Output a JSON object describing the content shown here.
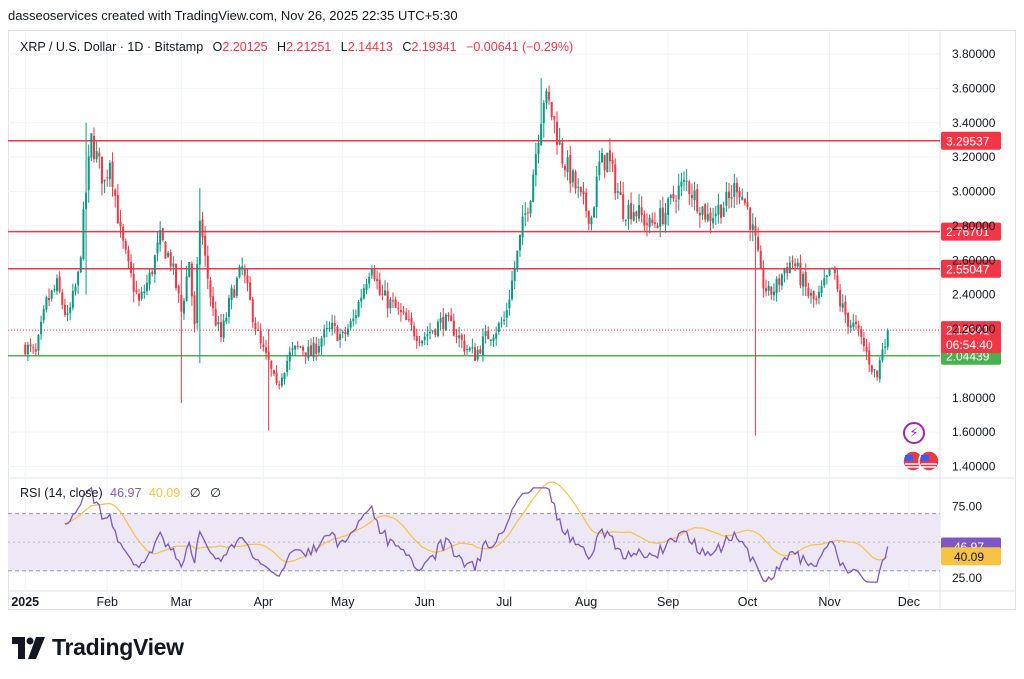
{
  "attribution": "dasseoservices created with TradingView.com, Nov 26, 2025 22:35 UTC+5:30",
  "legend": {
    "symbol": "XRP / U.S. Dollar · 1D · Bitstamp",
    "o_label": "O",
    "o_value": "2.20125",
    "h_label": "H",
    "h_value": "2.21251",
    "l_label": "L",
    "l_value": "2.14413",
    "c_label": "C",
    "c_value": "2.19341",
    "change": "−0.00641 (−0.29%)"
  },
  "rsi_legend": {
    "label": "RSI (14, close)",
    "rsi_value": "46.97",
    "ma_value": "40.09",
    "na1": "∅",
    "na2": "∅"
  },
  "logo_text": "TradingView",
  "icons": {
    "lightning": "lightning-icon",
    "flag": "us-flag-icon"
  },
  "colors": {
    "up": "#089981",
    "down": "#f23645",
    "resistance": "#f23645",
    "support": "#4caf50",
    "rsi": "#7e57c2",
    "rsi_ma": "#f6c343",
    "rsi_band": "#ede7f6"
  },
  "chart_data": {
    "type": "candlestick",
    "symbol": "XRP / U.S. Dollar",
    "interval": "1D",
    "exchange": "Bitstamp",
    "y_ticks": [
      "3.80000",
      "3.60000",
      "3.40000",
      "3.20000",
      "3.00000",
      "2.80000",
      "2.60000",
      "2.40000",
      "2.20000",
      "1.80000",
      "1.60000",
      "1.40000"
    ],
    "y_tick_values": [
      3.8,
      3.6,
      3.4,
      3.2,
      3.0,
      2.8,
      2.6,
      2.4,
      2.2,
      1.8,
      1.6,
      1.4
    ],
    "ylim": [
      1.38,
      3.87
    ],
    "x_ticks": [
      {
        "label": "2025",
        "day": 0
      },
      {
        "label": "Feb",
        "day": 31
      },
      {
        "label": "Mar",
        "day": 59
      },
      {
        "label": "Apr",
        "day": 90
      },
      {
        "label": "May",
        "day": 120
      },
      {
        "label": "Jun",
        "day": 151
      },
      {
        "label": "Jul",
        "day": 181
      },
      {
        "label": "Aug",
        "day": 212
      },
      {
        "label": "Sep",
        "day": 243
      },
      {
        "label": "Oct",
        "day": 273
      },
      {
        "label": "Nov",
        "day": 304
      },
      {
        "label": "Dec",
        "day": 334
      }
    ],
    "xlim": [
      -5,
      345
    ],
    "horizontal_levels": [
      {
        "value": 3.29537,
        "label": "3.29537",
        "color": "#f23645"
      },
      {
        "value": 2.76701,
        "label": "2.76701",
        "color": "#f23645"
      },
      {
        "value": 2.55047,
        "label": "2.55047",
        "color": "#f23645"
      },
      {
        "value": 2.04439,
        "label": "2.04439",
        "color": "#4caf50"
      }
    ],
    "last_price": {
      "value": 2.19341,
      "label": "2.19341",
      "countdown": "06:54:40"
    },
    "price_path": [
      [
        0,
        2.1
      ],
      [
        4,
        2.05
      ],
      [
        8,
        2.35
      ],
      [
        12,
        2.45
      ],
      [
        16,
        2.25
      ],
      [
        20,
        2.5
      ],
      [
        23,
        3.0
      ],
      [
        25,
        3.3
      ],
      [
        27,
        3.2
      ],
      [
        30,
        3.05
      ],
      [
        32,
        3.2
      ],
      [
        36,
        2.75
      ],
      [
        39,
        2.55
      ],
      [
        43,
        2.35
      ],
      [
        47,
        2.5
      ],
      [
        51,
        2.72
      ],
      [
        55,
        2.6
      ],
      [
        59,
        2.3
      ],
      [
        62,
        2.6
      ],
      [
        64,
        2.2
      ],
      [
        66,
        2.85
      ],
      [
        68,
        2.6
      ],
      [
        71,
        2.3
      ],
      [
        74,
        2.15
      ],
      [
        78,
        2.4
      ],
      [
        82,
        2.55
      ],
      [
        85,
        2.35
      ],
      [
        89,
        2.1
      ],
      [
        92,
        2.0
      ],
      [
        95,
        1.85
      ],
      [
        97,
        1.95
      ],
      [
        100,
        2.05
      ],
      [
        104,
        2.1
      ],
      [
        108,
        2.05
      ],
      [
        112,
        2.15
      ],
      [
        116,
        2.2
      ],
      [
        120,
        2.15
      ],
      [
        124,
        2.25
      ],
      [
        128,
        2.45
      ],
      [
        131,
        2.6
      ],
      [
        134,
        2.4
      ],
      [
        138,
        2.35
      ],
      [
        142,
        2.28
      ],
      [
        146,
        2.2
      ],
      [
        150,
        2.15
      ],
      [
        154,
        2.2
      ],
      [
        158,
        2.25
      ],
      [
        162,
        2.2
      ],
      [
        166,
        2.1
      ],
      [
        170,
        2.05
      ],
      [
        174,
        2.15
      ],
      [
        178,
        2.2
      ],
      [
        181,
        2.25
      ],
      [
        185,
        2.55
      ],
      [
        188,
        2.8
      ],
      [
        191,
        3.0
      ],
      [
        194,
        3.35
      ],
      [
        196,
        3.55
      ],
      [
        198,
        3.5
      ],
      [
        200,
        3.4
      ],
      [
        203,
        3.2
      ],
      [
        206,
        3.1
      ],
      [
        210,
        2.95
      ],
      [
        214,
        2.85
      ],
      [
        217,
        3.15
      ],
      [
        220,
        3.2
      ],
      [
        223,
        3.05
      ],
      [
        226,
        2.9
      ],
      [
        230,
        2.9
      ],
      [
        233,
        2.85
      ],
      [
        236,
        2.8
      ],
      [
        240,
        2.85
      ],
      [
        243,
        2.9
      ],
      [
        246,
        3.0
      ],
      [
        250,
        3.05
      ],
      [
        254,
        2.95
      ],
      [
        258,
        2.85
      ],
      [
        262,
        2.9
      ],
      [
        266,
        2.95
      ],
      [
        269,
        3.05
      ],
      [
        273,
        2.9
      ],
      [
        276,
        2.7
      ],
      [
        278,
        2.5
      ],
      [
        281,
        2.4
      ],
      [
        284,
        2.45
      ],
      [
        287,
        2.55
      ],
      [
        290,
        2.6
      ],
      [
        293,
        2.5
      ],
      [
        296,
        2.4
      ],
      [
        299,
        2.35
      ],
      [
        302,
        2.45
      ],
      [
        305,
        2.55
      ],
      [
        308,
        2.35
      ],
      [
        311,
        2.25
      ],
      [
        314,
        2.2
      ],
      [
        317,
        2.1
      ],
      [
        320,
        1.98
      ],
      [
        322,
        1.92
      ],
      [
        324,
        2.1
      ],
      [
        326,
        2.19341
      ]
    ],
    "special_wicks": [
      {
        "day": 23,
        "high": 3.4,
        "low": 2.4
      },
      {
        "day": 59,
        "high": 2.6,
        "low": 1.77
      },
      {
        "day": 66,
        "high": 3.02,
        "low": 2.0
      },
      {
        "day": 92,
        "high": 2.2,
        "low": 1.61
      },
      {
        "day": 195,
        "high": 3.66,
        "low": 3.3
      },
      {
        "day": 276,
        "high": 2.8,
        "low": 1.58
      }
    ],
    "rsi": {
      "period": 14,
      "value": 46.97,
      "ma_value": 40.09,
      "y_ticks": [
        "75.00",
        "25.00"
      ],
      "y_tick_values": [
        75,
        25
      ],
      "ylim": [
        20,
        90
      ],
      "band": [
        30,
        70
      ],
      "midline": 50
    }
  }
}
